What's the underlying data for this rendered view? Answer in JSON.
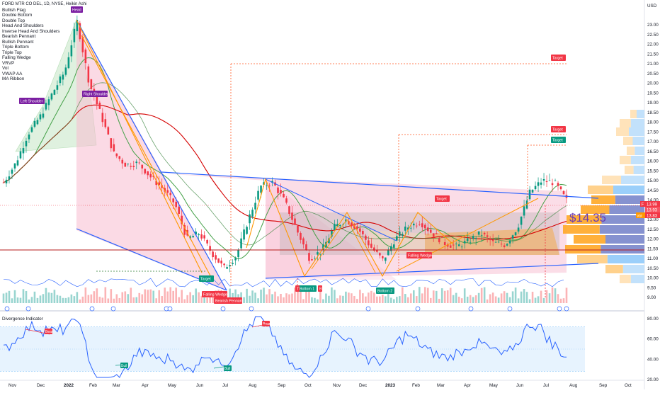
{
  "header": {
    "title": "FORD MTR CO DEL, 1D, NYSE, Heikin Ashi",
    "currency": "USD"
  },
  "indicators": [
    "Bullish Flag",
    "Double Bottom",
    "Double Top",
    "Head And Shoulders",
    "Inverse Head And Shoulders",
    "Bearish Pennant",
    "Bullish Pennant",
    "Triple Bottom",
    "Triple Top",
    "Falling Wedge",
    "VRVP",
    "Vol",
    "VWAP AA",
    "MA Ribbon"
  ],
  "price_axis": {
    "ticks": [
      "23.00",
      "22.50",
      "22.00",
      "21.50",
      "21.00",
      "20.50",
      "20.00",
      "19.50",
      "19.00",
      "18.50",
      "18.00",
      "17.50",
      "17.00",
      "16.50",
      "16.00",
      "15.50",
      "15.00",
      "14.50",
      "14.00",
      "13.50",
      "13.00",
      "12.50",
      "12.00",
      "11.50",
      "11.00",
      "10.50",
      "10.00",
      "9.50",
      "9.00"
    ],
    "last_price": "13.99",
    "badge_f": "F",
    "price_tag_2": "13.93",
    "price_tag_3": "13.83",
    "price_tag_3_prefix": "Vol",
    "colors": {
      "last": "#f23645",
      "mid": "#f7525f",
      "vol": "#ff9800"
    }
  },
  "time_axis": {
    "labels": [
      "Nov",
      "Dec",
      "2022",
      "Feb",
      "Mar",
      "Apr",
      "May",
      "Jun",
      "Jul",
      "Aug",
      "Sep",
      "Oct",
      "Nov",
      "Dec",
      "2023",
      "Feb",
      "Mar",
      "Apr",
      "May",
      "Jun",
      "Jul",
      "Aug",
      "Sep",
      "Oct"
    ]
  },
  "annotation_price": "$14.35",
  "pattern_labels": {
    "head": "Head",
    "left_shoulder": "Left Shoulder",
    "right_shoulder": "Right Shoulder",
    "target": "Target",
    "falling_wedge": "Falling Wedge",
    "bearish_pennant": "Bearish Pennant",
    "bottom1": "Bottom 1",
    "bottom2": "Bottom 2",
    "top_mark": "T",
    "bottom_mark": "B"
  },
  "divergence": {
    "title": "Divergence Indicator",
    "ticks": [
      "80.00",
      "60.00",
      "40.00",
      "20.00"
    ],
    "labels": {
      "bear": "Bear",
      "bull": "Bull"
    }
  },
  "colors": {
    "purple": "#7b1fa2",
    "red": "#f23645",
    "green": "#089981",
    "blue": "#2962ff",
    "orange": "#ff9800",
    "darkred": "#d50000",
    "ma_green": "#43a047"
  },
  "chart_data": {
    "type": "candlestick",
    "price_axis_range": [
      8.9,
      23.3
    ],
    "price_series_approx": [
      [
        "2021-10-25",
        14.9
      ],
      [
        "2021-11-08",
        15.9
      ],
      [
        "2021-11-22",
        17.4
      ],
      [
        "2021-12-06",
        18.3
      ],
      [
        "2021-12-20",
        19.5
      ],
      [
        "2022-01-03",
        20.6
      ],
      [
        "2022-01-13",
        23.2
      ],
      [
        "2022-01-27",
        20.0
      ],
      [
        "2022-02-10",
        18.3
      ],
      [
        "2022-02-24",
        16.4
      ],
      [
        "2022-03-10",
        15.8
      ],
      [
        "2022-03-24",
        15.9
      ],
      [
        "2022-04-07",
        15.2
      ],
      [
        "2022-04-21",
        14.6
      ],
      [
        "2022-05-05",
        13.8
      ],
      [
        "2022-05-19",
        12.0
      ],
      [
        "2022-06-02",
        12.3
      ],
      [
        "2022-06-16",
        11.3
      ],
      [
        "2022-06-30",
        10.5
      ],
      [
        "2022-07-14",
        11.1
      ],
      [
        "2022-07-28",
        13.0
      ],
      [
        "2022-08-11",
        14.7
      ],
      [
        "2022-08-25",
        14.9
      ],
      [
        "2022-09-08",
        13.9
      ],
      [
        "2022-09-22",
        12.4
      ],
      [
        "2022-10-06",
        11.0
      ],
      [
        "2022-10-20",
        11.4
      ],
      [
        "2022-11-03",
        12.6
      ],
      [
        "2022-11-17",
        13.0
      ],
      [
        "2022-12-01",
        12.5
      ],
      [
        "2022-12-15",
        11.6
      ],
      [
        "2022-12-29",
        10.9
      ],
      [
        "2023-01-12",
        12.0
      ],
      [
        "2023-01-26",
        12.6
      ],
      [
        "2023-02-09",
        12.9
      ],
      [
        "2023-02-23",
        12.3
      ],
      [
        "2023-03-09",
        11.8
      ],
      [
        "2023-03-23",
        11.6
      ],
      [
        "2023-04-06",
        11.9
      ],
      [
        "2023-04-20",
        12.3
      ],
      [
        "2023-05-04",
        11.8
      ],
      [
        "2023-05-18",
        11.7
      ],
      [
        "2023-06-01",
        12.6
      ],
      [
        "2023-06-15",
        14.4
      ],
      [
        "2023-06-29",
        15.0
      ],
      [
        "2023-07-13",
        14.9
      ],
      [
        "2023-07-20",
        13.99
      ]
    ],
    "volume_profile_visible": true,
    "divergence_range": [
      20,
      85
    ]
  }
}
